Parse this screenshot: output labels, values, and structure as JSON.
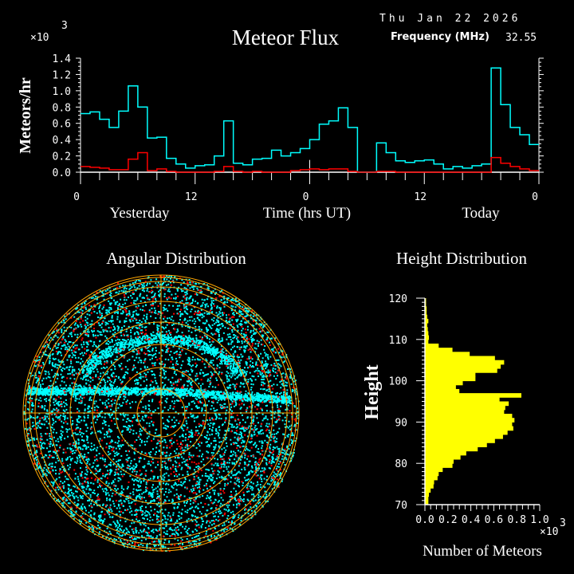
{
  "header": {
    "date": "Thu Jan 22 2026",
    "frequency_label": "Frequency (MHz)",
    "frequency_value": "32.55"
  },
  "chart_data": [
    {
      "type": "line",
      "title": "Meteor Flux",
      "ylabel": "Meteors/hr",
      "xlabel": "Time (hrs UT)",
      "y_multiplier": "×10",
      "y_multiplier_exp": "3",
      "ylim": [
        0,
        1.4
      ],
      "yticks": [
        "0.0",
        "0.2",
        "0.4",
        "0.6",
        "0.8",
        "1.0",
        "1.2",
        "1.4"
      ],
      "xlim_hours": [
        0,
        48
      ],
      "xtick_labels": [
        "0",
        "12",
        "0",
        "12",
        "0"
      ],
      "day_labels": [
        "Yesterday",
        "Today"
      ],
      "step": true,
      "series": [
        {
          "color": "#00ffff",
          "values": [
            0.72,
            0.74,
            0.65,
            0.55,
            0.75,
            1.06,
            0.8,
            0.42,
            0.43,
            0.17,
            0.1,
            0.05,
            0.08,
            0.09,
            0.2,
            0.63,
            0.11,
            0.09,
            0.16,
            0.17,
            0.27,
            0.2,
            0.24,
            0.29,
            0.4,
            0.59,
            0.63,
            0.79,
            0.55,
            0,
            0,
            0.36,
            0.24,
            0.14,
            0.12,
            0.14,
            0.15,
            0.1,
            0.04,
            0.07,
            0.05,
            0.08,
            0.1,
            1.28,
            0.83,
            0.55,
            0.46,
            0.34
          ]
        },
        {
          "color": "#ff0000",
          "values": [
            0.07,
            0.06,
            0.05,
            0.03,
            0.03,
            0.16,
            0.24,
            0.02,
            0.04,
            0.01,
            0,
            0,
            0,
            0,
            0.01,
            0.07,
            0.01,
            0,
            0.01,
            0,
            0,
            0,
            0.02,
            0.03,
            0.04,
            0.03,
            0.04,
            0.04,
            0.01,
            0,
            0,
            0.01,
            0.01,
            0,
            0,
            0,
            0,
            0,
            0,
            0,
            0,
            0,
            0,
            0.18,
            0.11,
            0.07,
            0.04,
            0.02
          ]
        }
      ]
    },
    {
      "type": "scatter",
      "title": "Angular Distribution",
      "projection": "polar",
      "colors": {
        "points": "#00ffff",
        "points_secondary": "#ff0000",
        "grid": "#ffa500"
      }
    },
    {
      "type": "bar",
      "orientation": "horizontal",
      "title": "Height Distribution",
      "ylabel": "Height",
      "xlabel": "Number of Meteors",
      "x_multiplier": "×10",
      "x_multiplier_exp": "3",
      "xlim": [
        0,
        1.0
      ],
      "ylim": [
        70,
        120
      ],
      "xticks": [
        "0.0",
        "0.2",
        "0.4",
        "0.6",
        "0.8",
        "1.0"
      ],
      "yticks": [
        "70",
        "80",
        "90",
        "100",
        "110",
        "120"
      ],
      "color": "#ffff00",
      "bin_start": 70,
      "bin_width": 1,
      "values": [
        0.03,
        0.03,
        0.035,
        0.05,
        0.075,
        0.08,
        0.11,
        0.12,
        0.155,
        0.24,
        0.25,
        0.31,
        0.36,
        0.46,
        0.54,
        0.61,
        0.68,
        0.72,
        0.77,
        0.76,
        0.78,
        0.76,
        0.69,
        0.7,
        0.73,
        0.65,
        0.84,
        0.3,
        0.27,
        0.33,
        0.44,
        0.44,
        0.63,
        0.66,
        0.69,
        0.61,
        0.39,
        0.24,
        0.12,
        0.03,
        0.035,
        0.03,
        0.025,
        0.02,
        0.03,
        0.02,
        0.015,
        0.015,
        0.01,
        0.01
      ]
    }
  ]
}
